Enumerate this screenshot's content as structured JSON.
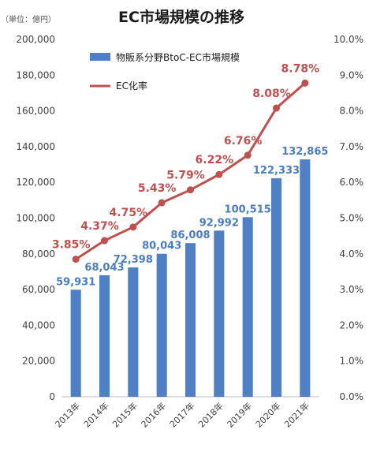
{
  "chart_data": {
    "type": "bar",
    "title": "EC市場規模の推移",
    "unit_label": "（単位：億円）",
    "categories": [
      "2013年",
      "2014年",
      "2015年",
      "2016年",
      "2017年",
      "2018年",
      "2019年",
      "2020年",
      "2021年"
    ],
    "series": [
      {
        "name": "物販系分野BtoC-EC市場規模",
        "type": "bar",
        "axis": "left",
        "values": [
          59931,
          68043,
          72398,
          80043,
          86008,
          92992,
          100515,
          122333,
          132865
        ],
        "labels": [
          "59,931",
          "68,043",
          "72,398",
          "80,043",
          "86,008",
          "92,992",
          "100,515",
          "122,333",
          "132,865"
        ],
        "color": "#4f7fc4",
        "label_color": "#4a7cc4"
      },
      {
        "name": "EC化率",
        "type": "line",
        "axis": "right",
        "values": [
          3.85,
          4.37,
          4.75,
          5.43,
          5.79,
          6.22,
          6.76,
          8.08,
          8.78
        ],
        "labels": [
          "3.85%",
          "4.37%",
          "4.75%",
          "5.43%",
          "5.79%",
          "6.22%",
          "6.76%",
          "8.08%",
          "8.78%"
        ],
        "color": "#c0504d",
        "label_color": "#c0504d"
      }
    ],
    "y_left": {
      "ylim": [
        0,
        200000
      ],
      "ticks": [
        "0",
        "20,000",
        "40,000",
        "60,000",
        "80,000",
        "100,000",
        "120,000",
        "140,000",
        "160,000",
        "180,000",
        "200,000"
      ]
    },
    "y_right": {
      "ylim": [
        0,
        10
      ],
      "ticks": [
        "0.0%",
        "1.0%",
        "2.0%",
        "3.0%",
        "4.0%",
        "5.0%",
        "6.0%",
        "7.0%",
        "8.0%",
        "9.0%",
        "10.0%"
      ]
    },
    "legend": {
      "position": "top-left",
      "entries": [
        "物販系分野BtoC-EC市場規模",
        "EC化率"
      ]
    },
    "grid": false
  }
}
